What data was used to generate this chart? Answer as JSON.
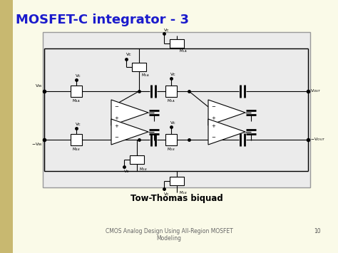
{
  "bg_color": "#fafae8",
  "title": "MOSFET-C integrator - 3",
  "title_color": "#1a1acc",
  "title_fontsize": 13,
  "circuit_bg": "#ebebeb",
  "caption": "Tow-Thomas biquad",
  "caption_fontsize": 8.5,
  "footer_text": "CMOS Analog Design Using All-Region MOSFET\nModeling",
  "footer_page": "10",
  "footer_fontsize": 5.5,
  "left_stripe_color": "#c8b870"
}
